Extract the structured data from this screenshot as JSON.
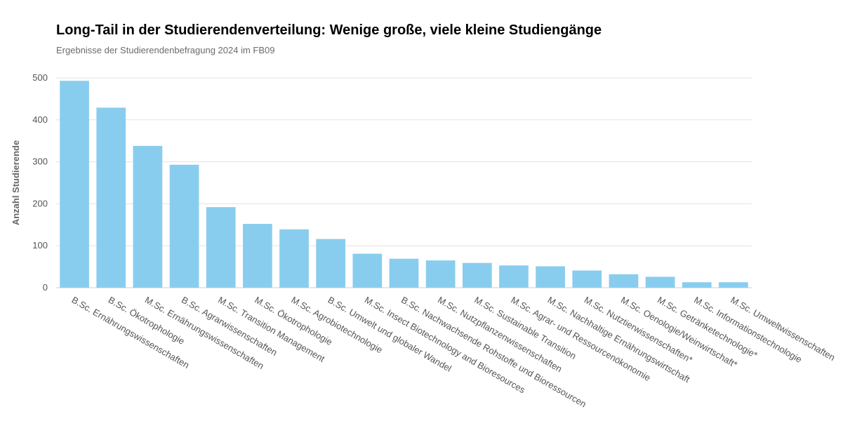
{
  "chart_data": {
    "type": "bar",
    "title": "Long-Tail in der Studierendenverteilung: Wenige große, viele kleine Studiengänge",
    "subtitle": "Ergebnisse der Studierendenbefragung 2024 im FB09",
    "xlabel": "",
    "ylabel": "Anzahl Studierende",
    "ylim": [
      0,
      500
    ],
    "yticks": [
      0,
      100,
      200,
      300,
      400,
      500
    ],
    "grid": true,
    "bar_color": "#89cdee",
    "categories": [
      "B.Sc. Ernährungswissenschaften",
      "B.Sc. Ökotrophologie",
      "M.Sc. Ernährungswissenschaften",
      "B.Sc. Agrarwissenschaften",
      "M.Sc. Transition Management",
      "M.Sc. Ökotrophologie",
      "M.Sc. Agrobiotechnologie",
      "B.Sc. Umwelt und globaler Wandel",
      "M.Sc. Insect Biotechnology and Bioresources",
      "B.Sc. Nachwachsende Rohstoffe und Bioressourcen",
      "M.Sc. Nutzpflanzenwissenschaften",
      "M.Sc. Sustainable Transition",
      "M.Sc. Agrar- und Ressourcenökonomie",
      "M.Sc. Nachhaltige Ernährungswirtschaft",
      "M.Sc. Nutztierwissenschaften*",
      "M.Sc. Oenologie/Weinwirtschaft*",
      "M.Sc. Getränketechnologie*",
      "M.Sc. Informationstechnologie",
      "M.Sc. Umweltwissenschaften"
    ],
    "values": [
      493,
      429,
      338,
      293,
      192,
      152,
      139,
      116,
      81,
      69,
      65,
      59,
      53,
      51,
      41,
      32,
      26,
      13,
      13
    ]
  }
}
